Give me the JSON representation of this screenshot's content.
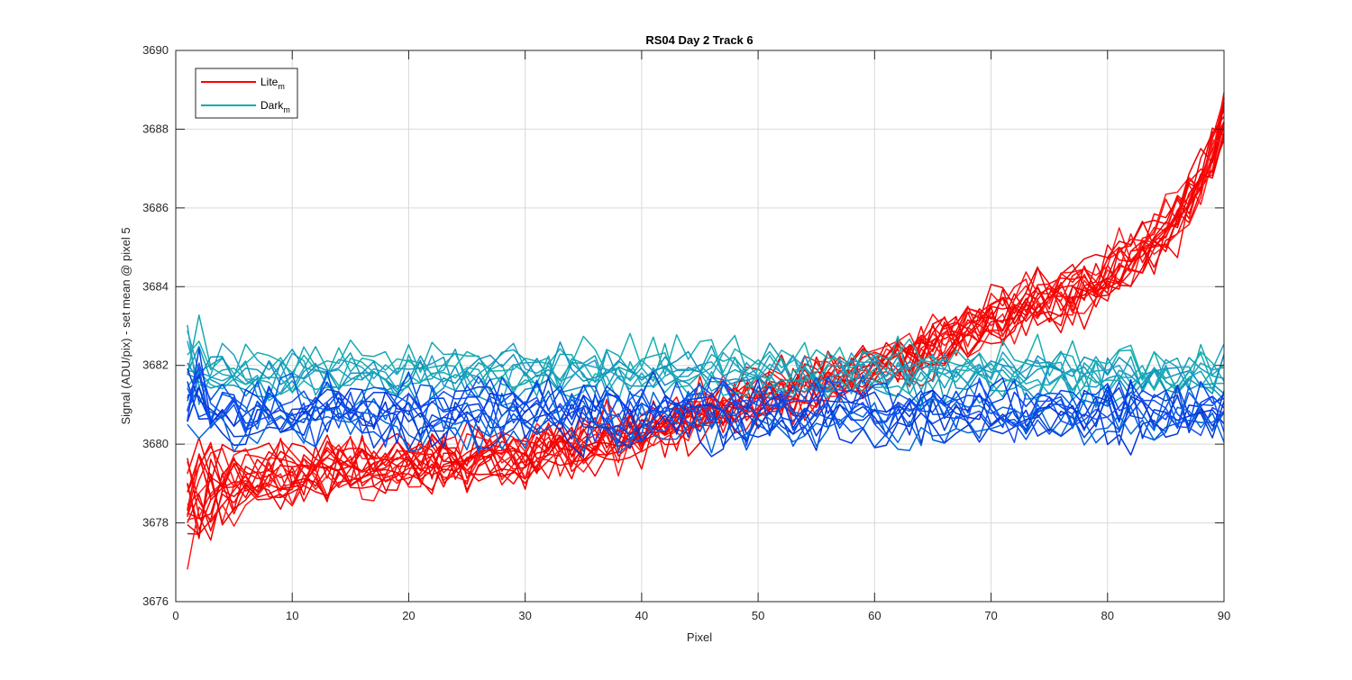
{
  "chart_data": {
    "type": "line",
    "title": "RS04 Day 2 Track 6",
    "xlabel": "Pixel",
    "ylabel": "Signal (ADU/pix) - set mean @ pixel 5",
    "xlim": [
      0,
      90
    ],
    "ylim": [
      3676,
      3690
    ],
    "xticks": [
      0,
      10,
      20,
      30,
      40,
      50,
      60,
      70,
      80,
      90
    ],
    "yticks": [
      3676,
      3678,
      3680,
      3682,
      3684,
      3686,
      3688,
      3690
    ],
    "grid": true,
    "legend": {
      "placement": "top-left",
      "entries": [
        {
          "name": "Lite",
          "sub": "m",
          "color": "#ff0000"
        },
        {
          "name": "Dark",
          "sub": "m",
          "color": "#11aaaa"
        }
      ]
    },
    "x": [
      1,
      2,
      3,
      4,
      5,
      6,
      7,
      8,
      9,
      10,
      11,
      12,
      13,
      14,
      15,
      16,
      17,
      18,
      19,
      20,
      21,
      22,
      23,
      24,
      25,
      26,
      27,
      28,
      29,
      30,
      31,
      32,
      33,
      34,
      35,
      36,
      37,
      38,
      39,
      40,
      41,
      42,
      43,
      44,
      45,
      46,
      47,
      48,
      49,
      50,
      51,
      52,
      53,
      54,
      55,
      56,
      57,
      58,
      59,
      60,
      61,
      62,
      63,
      64,
      65,
      66,
      67,
      68,
      69,
      70,
      71,
      72,
      73,
      74,
      75,
      76,
      77,
      78,
      79,
      80,
      81,
      82,
      83,
      84,
      85,
      86,
      87,
      88,
      89,
      90
    ],
    "lite_trend": [
      3678.5,
      3678.7,
      3678.9,
      3679.0,
      3679.1,
      3679.1,
      3679.2,
      3679.2,
      3679.3,
      3679.3,
      3679.3,
      3679.3,
      3679.4,
      3679.4,
      3679.4,
      3679.4,
      3679.4,
      3679.5,
      3679.5,
      3679.5,
      3679.5,
      3679.6,
      3679.6,
      3679.6,
      3679.6,
      3679.7,
      3679.7,
      3679.7,
      3679.8,
      3679.8,
      3679.8,
      3679.9,
      3679.9,
      3679.9,
      3680.0,
      3680.0,
      3680.1,
      3680.1,
      3680.2,
      3680.3,
      3680.4,
      3680.5,
      3680.6,
      3680.7,
      3680.8,
      3680.9,
      3680.9,
      3681.0,
      3681.1,
      3681.2,
      3681.3,
      3681.3,
      3681.4,
      3681.5,
      3681.5,
      3681.6,
      3681.7,
      3681.8,
      3681.9,
      3682.0,
      3682.1,
      3682.2,
      3682.3,
      3682.4,
      3682.5,
      3682.7,
      3682.8,
      3682.9,
      3683.0,
      3683.2,
      3683.3,
      3683.4,
      3683.5,
      3683.6,
      3683.7,
      3683.8,
      3683.9,
      3684.0,
      3684.1,
      3684.3,
      3684.5,
      3684.7,
      3684.9,
      3685.2,
      3685.5,
      3685.9,
      3686.3,
      3686.8,
      3687.4,
      3688.2
    ],
    "dark_trend": 3681.1,
    "series": [
      {
        "group": "lite",
        "count": 18,
        "colors": [
          "#ff0000",
          "#f70000",
          "#ee0000",
          "#ff1a1a",
          "#e60000",
          "#ff0d0d"
        ],
        "noise": 0.55
      },
      {
        "group": "dark",
        "count": 10,
        "colors": [
          "#119bb5",
          "#1aa8b0",
          "#0f8fc0",
          "#22a0c8",
          "#14b0b0"
        ],
        "offset": 0.7,
        "noise": 0.5
      },
      {
        "group": "dark",
        "count": 12,
        "colors": [
          "#0033dd",
          "#0044ee",
          "#0055e6",
          "#0a3ccc",
          "#1a4df0",
          "#0066dd"
        ],
        "offset": -0.4,
        "noise": 0.6
      }
    ]
  }
}
